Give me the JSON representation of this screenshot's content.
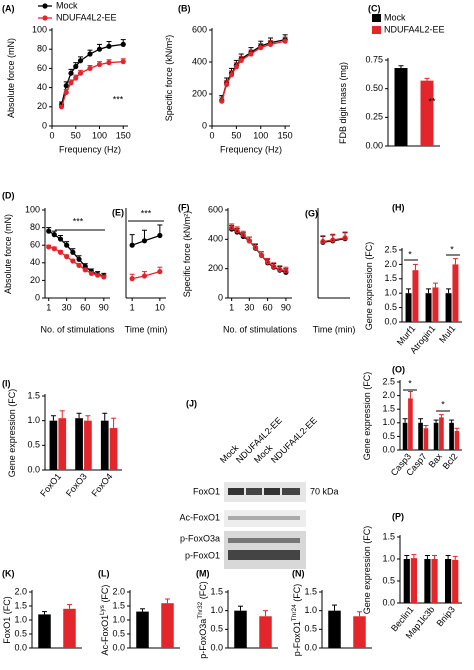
{
  "chart_data": [
    {
      "type": "line",
      "panel": "(A)",
      "ylabel": "Absolute force (mN)",
      "xlabel": "Frequency (Hz)",
      "x": [
        20,
        30,
        40,
        50,
        60,
        80,
        100,
        120,
        150
      ],
      "xlim": [
        0,
        160
      ],
      "xticks": [
        0,
        50,
        100,
        150
      ],
      "ylim": [
        0,
        100
      ],
      "yticks": [
        0,
        20,
        40,
        60,
        80,
        100
      ],
      "series": [
        {
          "name": "Mock",
          "color": "#000000",
          "values": [
            22,
            42,
            55,
            62,
            68,
            75,
            80,
            83,
            85
          ],
          "errors": [
            3,
            4,
            4,
            4,
            4,
            4,
            5,
            5,
            5
          ]
        },
        {
          "name": "NDUFA4L2-EE",
          "color": "#e3262b",
          "values": [
            20,
            35,
            45,
            50,
            55,
            60,
            64,
            66,
            67
          ],
          "errors": [
            2,
            3,
            3,
            3,
            3,
            3,
            3,
            3,
            3
          ]
        }
      ],
      "legend": true,
      "annotations": [
        "***"
      ]
    },
    {
      "type": "line",
      "panel": "(B)",
      "ylabel": "Specific force (kN/m²)",
      "xlabel": "Frequency (Hz)",
      "x": [
        20,
        30,
        40,
        50,
        60,
        80,
        100,
        120,
        150
      ],
      "xlim": [
        0,
        160
      ],
      "xticks": [
        0,
        50,
        100,
        150
      ],
      "ylim": [
        0,
        600
      ],
      "yticks": [
        0,
        200,
        400,
        600
      ],
      "series": [
        {
          "color": "#000000",
          "values": [
            160,
            270,
            330,
            380,
            420,
            460,
            500,
            520,
            540
          ],
          "errors": [
            30,
            30,
            30,
            30,
            30,
            30,
            30,
            30,
            30
          ]
        },
        {
          "color": "#e3262b",
          "values": [
            155,
            260,
            320,
            370,
            410,
            450,
            490,
            510,
            530
          ],
          "errors": [
            25,
            25,
            25,
            25,
            25,
            25,
            25,
            25,
            25
          ]
        }
      ]
    },
    {
      "type": "bar",
      "panel": "(C)",
      "ylabel": "FDB digit mass (mg)",
      "ylim": [
        0,
        0.75
      ],
      "yticks": [
        {
          "value": 0,
          "label": "0.00"
        },
        {
          "value": 0.25,
          "label": "0.25"
        },
        {
          "value": 0.5,
          "label": "0.50"
        },
        {
          "value": 0.75,
          "label": "0.75"
        }
      ],
      "series": [
        {
          "name": "Mock",
          "color": "#000000",
          "values": [
            0.68
          ],
          "errors": [
            0.02
          ]
        },
        {
          "name": "NDUFA4L2-EE",
          "color": "#e3262b",
          "values": [
            0.57
          ],
          "errors": [
            0.02
          ]
        }
      ],
      "legend": true,
      "annotations": [
        "**"
      ]
    },
    {
      "type": "line",
      "panel": "(D)",
      "ylabel": "Absolute force (mN)",
      "xlabel": "No. of stimulations",
      "x": [
        1,
        10,
        20,
        30,
        40,
        50,
        60,
        70,
        80,
        90
      ],
      "xlim": [
        -5,
        100
      ],
      "xticks": [
        1,
        30,
        60,
        90
      ],
      "ylim": [
        0,
        100
      ],
      "yticks": [
        0,
        20,
        40,
        60,
        80,
        100
      ],
      "series": [
        {
          "color": "#000000",
          "values": [
            76,
            72,
            67,
            60,
            52,
            44,
            36,
            30,
            27,
            25
          ],
          "errors": [
            4,
            4,
            4,
            4,
            4,
            4,
            3,
            3,
            3,
            3
          ]
        },
        {
          "color": "#e3262b",
          "values": [
            58,
            56,
            52,
            47,
            42,
            37,
            32,
            28,
            26,
            24
          ],
          "errors": [
            2,
            2,
            2,
            2,
            2,
            2,
            2,
            2,
            2,
            2
          ]
        }
      ],
      "annotations": [
        "***"
      ]
    },
    {
      "type": "line",
      "panel": "(E)",
      "xlabel": "Time (min)",
      "x": [
        1,
        5,
        10
      ],
      "xlim": [
        -1,
        12
      ],
      "xticks": [
        1,
        10
      ],
      "ylim": [
        0,
        100
      ],
      "series": [
        {
          "color": "#000000",
          "values": [
            60,
            65,
            71
          ],
          "errors": [
            12,
            12,
            12
          ]
        },
        {
          "color": "#e3262b",
          "values": [
            22,
            25,
            30
          ],
          "errors": [
            5,
            5,
            5
          ]
        }
      ],
      "annotations": [
        "***"
      ]
    },
    {
      "type": "line",
      "panel": "(F)",
      "ylabel": "Specific force (kN/m²)",
      "xlabel": "No. of stimulations",
      "x": [
        1,
        10,
        20,
        30,
        40,
        50,
        60,
        70,
        80,
        90
      ],
      "xlim": [
        -5,
        100
      ],
      "xticks": [
        1,
        30,
        60,
        90
      ],
      "ylim": [
        0,
        600
      ],
      "yticks": [
        0,
        200,
        400,
        600
      ],
      "series": [
        {
          "color": "#000000",
          "values": [
            470,
            450,
            420,
            390,
            340,
            290,
            240,
            210,
            190,
            175
          ],
          "errors": [
            25,
            25,
            25,
            25,
            25,
            25,
            25,
            25,
            25,
            25
          ]
        },
        {
          "color": "#e3262b",
          "values": [
            480,
            460,
            430,
            390,
            345,
            290,
            245,
            215,
            195,
            185
          ],
          "errors": [
            25,
            25,
            25,
            25,
            25,
            25,
            25,
            25,
            25,
            25
          ]
        }
      ]
    },
    {
      "type": "line",
      "panel": "(G)",
      "xlabel": "Time (min)",
      "x": [
        1,
        5,
        10
      ],
      "xlim": [
        -1,
        12
      ],
      "ylim": [
        0,
        600
      ],
      "series": [
        {
          "color": "#000000",
          "values": [
            380,
            390,
            405
          ],
          "errors": [
            40,
            40,
            40
          ]
        },
        {
          "color": "#e3262b",
          "values": [
            385,
            395,
            410
          ],
          "errors": [
            40,
            40,
            40
          ]
        }
      ]
    },
    {
      "type": "bar",
      "panel": "(H)",
      "ylabel": "Gene expression (FC)",
      "categories": [
        "Murf1",
        "Atrogin1",
        "Mul1"
      ],
      "ylim": [
        0,
        2.5
      ],
      "yticks": [
        {
          "value": 0,
          "label": "0.0"
        },
        {
          "value": 0.5,
          "label": "0.5"
        },
        {
          "value": 1,
          "label": "1.0"
        },
        {
          "value": 1.5,
          "label": "1.5"
        },
        {
          "value": 2,
          "label": "2.0"
        },
        {
          "value": 2.5,
          "label": "2.5"
        }
      ],
      "series": [
        {
          "color": "#000000",
          "values": [
            1.0,
            1.0,
            1.0
          ],
          "errors": [
            0.15,
            0.15,
            0.15
          ]
        },
        {
          "color": "#e3262b",
          "values": [
            1.8,
            1.2,
            2.0
          ],
          "errors": [
            0.2,
            0.15,
            0.2
          ]
        }
      ],
      "annotations": [
        "*",
        "*"
      ]
    },
    {
      "type": "bar",
      "panel": "(I)",
      "ylabel": "Gene expression (FC)",
      "categories": [
        "FoxO1",
        "FoxO3",
        "FoxO4"
      ],
      "ylim": [
        0,
        1.5
      ],
      "yticks": [
        {
          "value": 0,
          "label": "0.0"
        },
        {
          "value": 0.5,
          "label": "0.5"
        },
        {
          "value": 1,
          "label": "1.0"
        },
        {
          "value": 1.5,
          "label": "1.5"
        }
      ],
      "series": [
        {
          "color": "#000000",
          "values": [
            1.0,
            1.05,
            1.0
          ],
          "errors": [
            0.1,
            0.1,
            0.15
          ]
        },
        {
          "color": "#e3262b",
          "values": [
            1.05,
            1.0,
            0.85
          ],
          "errors": [
            0.15,
            0.1,
            0.2
          ]
        }
      ]
    },
    {
      "type": "bar",
      "panel": "(O)",
      "ylabel": "Gene expression (FC)",
      "categories": [
        "Casp3",
        "Casp7",
        "Bax",
        "Bcl2"
      ],
      "ylim": [
        0,
        2.5
      ],
      "yticks": [
        {
          "value": 0,
          "label": "0.0"
        },
        {
          "value": 0.5,
          "label": "0.5"
        },
        {
          "value": 1,
          "label": "1.0"
        },
        {
          "value": 1.5,
          "label": "1.5"
        },
        {
          "value": 2,
          "label": "2.0"
        },
        {
          "value": 2.5,
          "label": "2.5"
        }
      ],
      "series": [
        {
          "color": "#000000",
          "values": [
            1.0,
            1.0,
            1.0,
            1.0
          ],
          "errors": [
            0.15,
            0.15,
            0.1,
            0.1
          ]
        },
        {
          "color": "#e3262b",
          "values": [
            1.9,
            0.8,
            1.2,
            0.7
          ],
          "errors": [
            0.25,
            0.1,
            0.1,
            0.1
          ]
        }
      ],
      "annotations": [
        "*",
        "*"
      ]
    },
    {
      "type": "bar",
      "panel": "(P)",
      "ylabel": "Gene expression (FC)",
      "categories": [
        "Beclin1",
        "Map1lc3b",
        "Bnip3"
      ],
      "ylim": [
        0,
        1.5
      ],
      "yticks": [
        {
          "value": 0,
          "label": "0.0"
        },
        {
          "value": 0.5,
          "label": "0.5"
        },
        {
          "value": 1,
          "label": "1.0"
        },
        {
          "value": 1.5,
          "label": "1.5"
        }
      ],
      "series": [
        {
          "color": "#000000",
          "values": [
            1.0,
            1.0,
            1.0
          ],
          "errors": [
            0.08,
            0.08,
            0.08
          ]
        },
        {
          "color": "#e3262b",
          "values": [
            1.02,
            1.0,
            0.98
          ],
          "errors": [
            0.08,
            0.08,
            0.08
          ]
        }
      ]
    },
    {
      "type": "bar",
      "panel": "(K)",
      "ylabel": "FoxO1 (FC)",
      "ylim": [
        0,
        2.0
      ],
      "yticks": [
        {
          "value": 0,
          "label": "0.0"
        },
        {
          "value": 0.5,
          "label": "0.5"
        },
        {
          "value": 1,
          "label": "1.0"
        },
        {
          "value": 1.5,
          "label": "1.5"
        },
        {
          "value": 2,
          "label": "2.0"
        }
      ],
      "values": [
        1.2,
        1.4
      ],
      "errors": [
        0.1,
        0.15
      ],
      "colors": [
        "#000000",
        "#e3262b"
      ]
    },
    {
      "type": "bar",
      "panel": "(L)",
      "ylabel": "Ac-FoxO1",
      "ylabel_sup": "Lys",
      "ylabel_end": " (FC)",
      "ylim": [
        0,
        2.0
      ],
      "yticks": [
        {
          "value": 0,
          "label": "0.0"
        },
        {
          "value": 0.5,
          "label": "0.5"
        },
        {
          "value": 1,
          "label": "1.0"
        },
        {
          "value": 1.5,
          "label": "1.5"
        },
        {
          "value": 2,
          "label": "2.0"
        }
      ],
      "values": [
        1.3,
        1.6
      ],
      "errors": [
        0.1,
        0.15
      ],
      "colors": [
        "#000000",
        "#e3262b"
      ]
    },
    {
      "type": "bar",
      "panel": "(M)",
      "ylabel": "p-FoxO3a",
      "ylabel_sup": "Thr32",
      "ylabel_end": " (FC)",
      "ylim": [
        0,
        1.5
      ],
      "yticks": [
        {
          "value": 0,
          "label": "0.0"
        },
        {
          "value": 0.5,
          "label": "0.5"
        },
        {
          "value": 1,
          "label": "1.0"
        },
        {
          "value": 1.5,
          "label": "1.5"
        }
      ],
      "values": [
        1.0,
        0.85
      ],
      "errors": [
        0.12,
        0.15
      ],
      "colors": [
        "#000000",
        "#e3262b"
      ]
    },
    {
      "type": "bar",
      "panel": "(N)",
      "ylabel": "p-FoxO1",
      "ylabel_sup": "Thr24",
      "ylabel_end": " (FC)",
      "ylim": [
        0,
        1.5
      ],
      "yticks": [
        {
          "value": 0,
          "label": "0.0"
        },
        {
          "value": 0.5,
          "label": "0.5"
        },
        {
          "value": 1,
          "label": "1.0"
        },
        {
          "value": 1.5,
          "label": "1.5"
        }
      ],
      "values": [
        1.0,
        0.85
      ],
      "errors": [
        0.15,
        0.12
      ],
      "colors": [
        "#000000",
        "#e3262b"
      ]
    }
  ],
  "blot": {
    "panel": "(J)",
    "lanes": [
      "Mock",
      "NDUFA4L2-EE",
      "Mock",
      "NDUFA4L2-EE"
    ],
    "rows": [
      "FoxO1",
      "Ac-FoxO1",
      "p-FoxO3a",
      "p-FoxO1"
    ],
    "marker": "70 kDa"
  }
}
